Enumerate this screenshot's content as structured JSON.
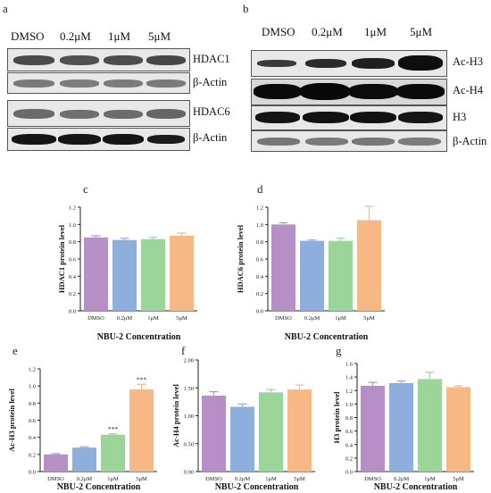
{
  "panel_a": {
    "letter": "a",
    "lanes": [
      "DMSO",
      "0.2μM",
      "1μM",
      "5μM"
    ],
    "blots": [
      {
        "label": "HDAC1"
      },
      {
        "label": "β-Actin"
      },
      {
        "label": "HDAC6"
      },
      {
        "label": "β-Actin"
      }
    ]
  },
  "panel_b": {
    "letter": "b",
    "lanes": [
      "DMSO",
      "0.2μM",
      "1μM",
      "5μM"
    ],
    "blots": [
      {
        "label": "Ac-H3"
      },
      {
        "label": "Ac-H4"
      },
      {
        "label": "H3"
      },
      {
        "label": "β-Actin"
      }
    ]
  },
  "colors": {
    "DMSO": "#b58fc6",
    "0.2uM": "#8eaedd",
    "1uM": "#9bd59a",
    "5uM": "#f6b885"
  },
  "chart_data": [
    {
      "letter": "c",
      "type": "bar",
      "categories": [
        "DMSO",
        "0.2μM",
        "1μM",
        "5μM"
      ],
      "values": [
        0.85,
        0.82,
        0.83,
        0.87
      ],
      "errors": [
        0.02,
        0.02,
        0.02,
        0.03
      ],
      "ylabel": "HDAC1 protein level",
      "xlabel": "NBU-2 Concentration",
      "ylim": [
        0,
        1.2
      ],
      "yticks": [
        "0.0",
        "0.2",
        "0.4",
        "0.6",
        "0.8",
        "1.0",
        "1.2"
      ],
      "annotations": [
        "",
        "",
        "",
        ""
      ]
    },
    {
      "letter": "d",
      "type": "bar",
      "categories": [
        "DMSO",
        "0.2μM",
        "1μM",
        "5μM"
      ],
      "values": [
        1.0,
        0.81,
        0.81,
        1.05
      ],
      "errors": [
        0.02,
        0.01,
        0.03,
        0.16
      ],
      "ylabel": "HDAC6 protein level",
      "xlabel": "NBU-2 Concentration",
      "ylim": [
        0,
        1.2
      ],
      "yticks": [
        "0.0",
        "0.2",
        "0.4",
        "0.6",
        "0.8",
        "1.0",
        "1.2"
      ],
      "annotations": [
        "",
        "",
        "",
        ""
      ]
    },
    {
      "letter": "e",
      "type": "bar",
      "categories": [
        "DMSO",
        "0.2μM",
        "1μM",
        "5μM"
      ],
      "values": [
        0.2,
        0.28,
        0.43,
        0.96
      ],
      "errors": [
        0.01,
        0.01,
        0.01,
        0.06
      ],
      "ylabel": "Ac-H3 protein level",
      "xlabel": "NBU-2 Concentration",
      "ylim": [
        0,
        1.2
      ],
      "yticks": [
        "0.0",
        "0.2",
        "0.4",
        "0.6",
        "0.8",
        "1.0",
        "1.2"
      ],
      "annotations": [
        "",
        "",
        "***",
        "***"
      ]
    },
    {
      "letter": "f",
      "type": "bar",
      "categories": [
        "DMSO",
        "0.2μM",
        "1μM",
        "5μM"
      ],
      "values": [
        1.36,
        1.16,
        1.42,
        1.47
      ],
      "errors": [
        0.07,
        0.05,
        0.05,
        0.08
      ],
      "ylabel": "Ac-H4 protein level",
      "xlabel": "NBU-2 Concentration",
      "ylim": [
        0,
        2.0
      ],
      "yticks": [
        "0.00",
        "0.50",
        "1.00",
        "1.50",
        "2.00"
      ],
      "annotations": [
        "",
        "",
        "",
        ""
      ]
    },
    {
      "letter": "g",
      "type": "bar",
      "categories": [
        "DMSO",
        "0.2μM",
        "1μM",
        "5μM"
      ],
      "values": [
        1.27,
        1.31,
        1.37,
        1.25
      ],
      "errors": [
        0.05,
        0.03,
        0.1,
        0.02
      ],
      "ylabel": "H3 protein level",
      "xlabel": "NBU-2 Concentration",
      "ylim": [
        0,
        1.6
      ],
      "yticks": [
        "0.0",
        "0.2",
        "0.4",
        "0.6",
        "0.8",
        "1.0",
        "1.2",
        "1.4",
        "1.6"
      ],
      "annotations": [
        "",
        "",
        "",
        ""
      ]
    }
  ]
}
